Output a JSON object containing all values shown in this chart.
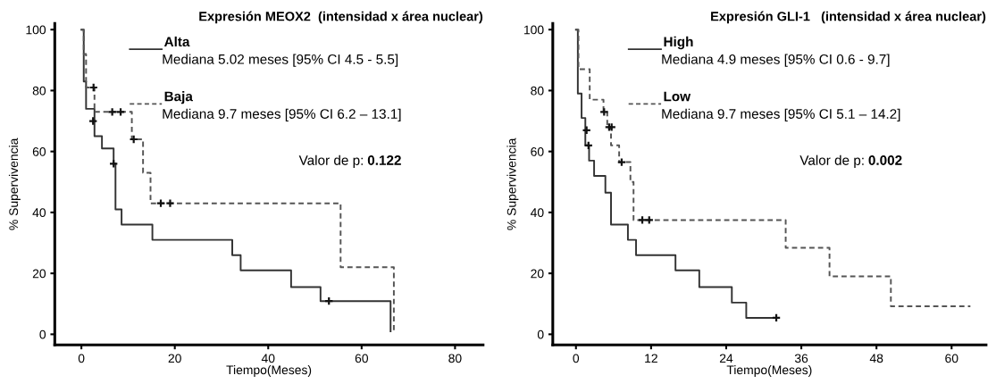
{
  "chart_data": [
    {
      "type": "step",
      "title": "Expresión MEOX2  (intensidad x área nuclear)",
      "xlabel": "Tiempo(Meses)",
      "ylabel": "% Supervivencia",
      "xlim": [
        -5.7,
        86
      ],
      "ylim": [
        -3.5,
        102
      ],
      "xticks": [
        0,
        20,
        40,
        60,
        80
      ],
      "yticks": [
        0,
        20,
        40,
        60,
        80,
        100
      ],
      "grid": false,
      "legend": "top",
      "series": [
        {
          "name": "Alta",
          "color": "#333333",
          "line_style": "solid",
          "x": [
            0,
            0.5,
            1,
            2.8,
            4.4,
            6.9,
            7.3,
            8.6,
            15.2,
            32.3,
            34.1,
            44.9,
            51.2,
            66.2
          ],
          "values": [
            100,
            83,
            74,
            65,
            61,
            56,
            41,
            36,
            31,
            26,
            21,
            15.5,
            10.9,
            1
          ]
        },
        {
          "name": "Baja",
          "color": "#555555",
          "line_style": "dashed",
          "x": [
            0,
            0.5,
            1,
            2.8,
            10.8,
            13.2,
            14.8,
            55.5,
            66.9
          ],
          "values": [
            100,
            92,
            81,
            73,
            64,
            53,
            43,
            22,
            1
          ]
        },
        {
          "type": "scatter",
          "color": "#111111",
          "marker": "cross",
          "x": [
            2.5,
            6.9,
            53
          ],
          "values": [
            70,
            56,
            10.9
          ]
        },
        {
          "type": "scatter",
          "color": "#111111",
          "marker": "cross",
          "x": [
            2.6,
            6.6,
            8.4,
            11.2,
            17,
            19
          ],
          "values": [
            81,
            73,
            73,
            64,
            43,
            43
          ]
        }
      ],
      "annotations": [
        "Mediana 5.02 meses [95% CI 4.5 - 5.5]",
        "Mediana 9.7 meses [95% CI 6.2 – 13.1]",
        "Valor de p: 0.122"
      ]
    },
    {
      "type": "step",
      "title": "Expresión GLI-1   (intensidad x área nuclear)",
      "xlabel": "Tiempo(Meses)",
      "ylabel": "% Supervivencia",
      "xlim": [
        -3.7,
        65.5
      ],
      "ylim": [
        -3.5,
        102
      ],
      "xticks": [
        0,
        12,
        24,
        36,
        48,
        60
      ],
      "yticks": [
        0,
        20,
        40,
        60,
        80,
        100
      ],
      "grid": false,
      "legend": "top",
      "series": [
        {
          "name": "High",
          "color": "#333333",
          "line_style": "solid",
          "x": [
            0,
            0.3,
            0.9,
            1.5,
            2.1,
            2.9,
            4.7,
            5.6,
            8.3,
            9.6,
            15.9,
            19.7,
            24.9,
            27.2,
            32
          ],
          "values": [
            100,
            79,
            71,
            62,
            57,
            52,
            46.5,
            36,
            31,
            26,
            21,
            15.5,
            10.4,
            5.4,
            5.4
          ]
        },
        {
          "name": "Low",
          "color": "#555555",
          "line_style": "dashed",
          "x": [
            0,
            0.4,
            2.2,
            4.4,
            5.0,
            5.6,
            6.9,
            8.7,
            9.2,
            33.5,
            40.5,
            50.3,
            63
          ],
          "values": [
            100,
            87,
            77,
            73,
            68,
            62,
            56.5,
            50,
            37.5,
            28.4,
            19,
            9.2,
            9.2
          ]
        },
        {
          "type": "scatter",
          "color": "#111111",
          "marker": "cross",
          "x": [
            1.7,
            2.0,
            32
          ],
          "values": [
            67,
            62,
            5.4
          ]
        },
        {
          "type": "scatter",
          "color": "#111111",
          "marker": "cross",
          "x": [
            4.5,
            5.3,
            5.7,
            7.3,
            10.6,
            11.7
          ],
          "values": [
            73,
            68,
            68,
            56.5,
            37.5,
            37.5
          ]
        }
      ],
      "annotations": [
        "Mediana 4.9 meses [95% CI 0.6 - 9.7]",
        "Mediana 9.7 meses [95% CI 5.1 – 14.2]",
        "Valor de p: 0.002"
      ]
    }
  ]
}
